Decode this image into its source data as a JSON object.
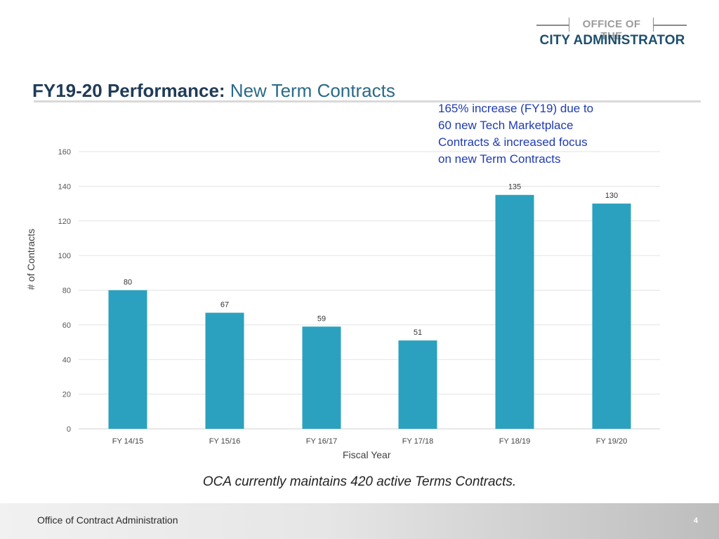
{
  "logo": {
    "top": "OFFICE OF THE",
    "bottom": "CITY ADMINISTRATOR"
  },
  "title": {
    "main": "FY19-20 Performance:",
    "sub": "New Term Contracts"
  },
  "annotation": [
    "165% increase (FY19) due to",
    "60 new Tech Marketplace",
    "Contracts & increased focus",
    "on new Term Contracts"
  ],
  "chart_data": {
    "type": "bar",
    "categories": [
      "FY 14/15",
      "FY 15/16",
      "FY 16/17",
      "FY 17/18",
      "FY 18/19",
      "FY 19/20"
    ],
    "values": [
      80,
      67,
      59,
      51,
      135,
      130
    ],
    "xlabel": "Fiscal Year",
    "ylabel": "# of Contracts",
    "ylim": [
      0,
      160
    ],
    "yticks": [
      0,
      20,
      40,
      60,
      80,
      100,
      120,
      140,
      160
    ],
    "grid": true,
    "bar_color": "#2ba1bf"
  },
  "caption": "OCA currently maintains 420 active Terms Contracts.",
  "footer": {
    "org": "Office of Contract Administration",
    "page": "4"
  }
}
